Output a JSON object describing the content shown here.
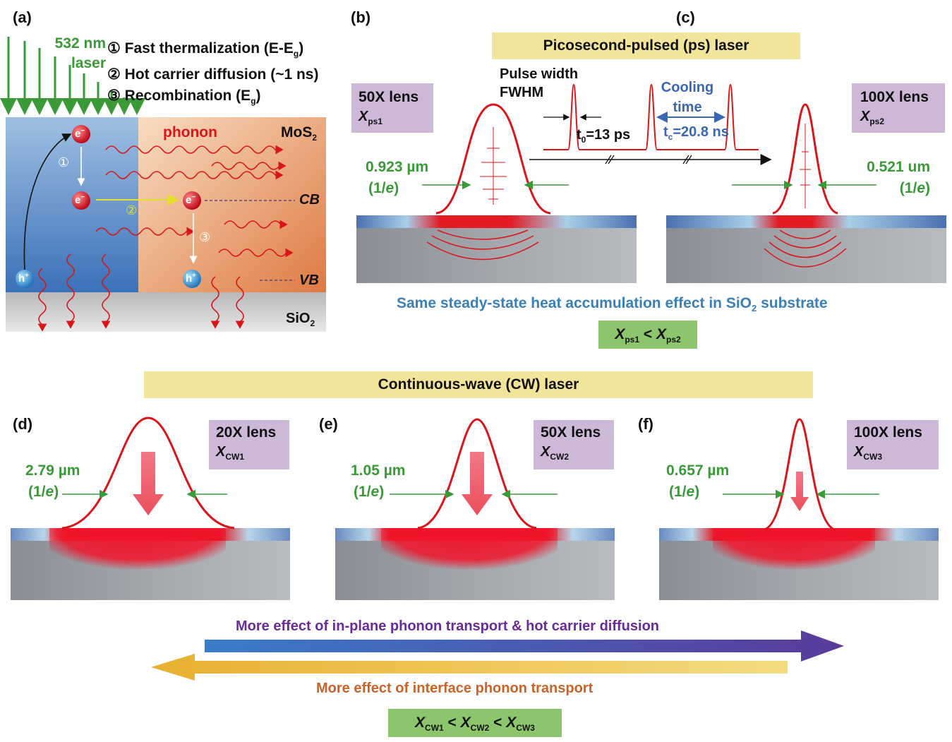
{
  "colors": {
    "green": "#3a9a38",
    "red": "#d9141a",
    "blue": "#3a68b0",
    "banner": "#f0e59a",
    "lens": "#cdb8d8",
    "compare": "#8cc56c",
    "purple": "#6a2a9a",
    "orange": "#c8642a",
    "teal": "#3a7fb8"
  },
  "panel_a": {
    "label": "(a)",
    "laser_line1": "532 nm",
    "laser_line2": "laser",
    "steps": [
      {
        "num": "①",
        "text": "Fast thermalization (E-E",
        "sub": "g",
        ")": ")",
        "tail": ")"
      },
      {
        "num": "②",
        "text": "Hot carrier diffusion (~1 ns)"
      },
      {
        "num": "③",
        "text": "Recombination (E",
        "sub": "g",
        "tail": ")"
      }
    ],
    "phonon": "phonon",
    "mos2": "MoS",
    "mos2_sub": "2",
    "cb": "CB",
    "vb": "VB",
    "sio2": "SiO",
    "sio2_sub": "2",
    "electron": "e",
    "hole": "h",
    "c1": "①",
    "c2": "②",
    "c3": "③"
  },
  "panel_bc": {
    "label_b": "(b)",
    "label_c": "(c)",
    "banner": "Picosecond-pulsed (ps) laser",
    "lens_b": "50X lens",
    "x_b": "X",
    "x_b_sub": "ps1",
    "lens_c": "100X lens",
    "x_c": "X",
    "x_c_sub": "ps2",
    "width_b": "0.923 µm",
    "width_c": "0.521 um",
    "one_over_e": "(1/e)",
    "pulse_width_1": "Pulse width",
    "pulse_width_2": "FWHM",
    "t0": "t",
    "t0_sub": "0",
    "t0_val": "=13 ps",
    "cooling_1": "Cooling",
    "cooling_2": "time",
    "tc": "t",
    "tc_sub": "c",
    "tc_val": "=20.8 ns",
    "caption_pre": "Same steady-state heat accumulation effect in SiO",
    "caption_sub": "2",
    "caption_post": " substrate",
    "compare": [
      "X",
      "ps1",
      " < ",
      "X",
      "ps2"
    ]
  },
  "panel_def": {
    "banner": "Continuous-wave (CW) laser",
    "items": [
      {
        "label": "(d)",
        "lens": "20X lens",
        "x": "X",
        "x_sub": "CW1",
        "width": "2.79 µm",
        "one_over_e": "(1/e)"
      },
      {
        "label": "(e)",
        "lens": "50X lens",
        "x": "X",
        "x_sub": "CW2",
        "width": "1.05 µm",
        "one_over_e": "(1/e)"
      },
      {
        "label": "(f)",
        "lens": "100X lens",
        "x": "X",
        "x_sub": "CW3",
        "width": "0.657 µm",
        "one_over_e": "(1/e)"
      }
    ],
    "arrow_right": "More effect of in-plane phonon transport & hot carrier diffusion",
    "arrow_left": "More effect of interface phonon transport",
    "compare": [
      "X",
      "CW1",
      " < ",
      "X",
      "CW2",
      " < ",
      "X",
      "CW3"
    ]
  }
}
